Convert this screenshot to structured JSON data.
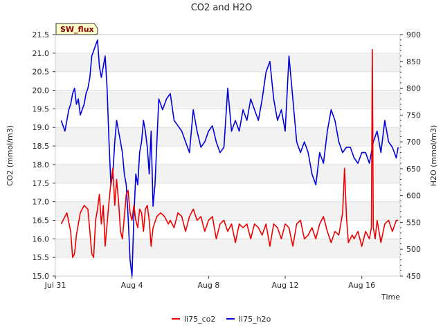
{
  "chart_data": {
    "type": "line",
    "title": "CO2 and H2O",
    "badge": "SW_flux",
    "xlabel": "Time",
    "ylabel_left": "CO2 (mmol/m3)",
    "ylabel_right": "H2O (mmol/m3)",
    "x_range_days": [
      0,
      18
    ],
    "x_ticks": [
      {
        "day": 0,
        "label": "Jul 31"
      },
      {
        "day": 4,
        "label": "Aug 4"
      },
      {
        "day": 8,
        "label": "Aug 8"
      },
      {
        "day": 12,
        "label": "Aug 12"
      },
      {
        "day": 16,
        "label": "Aug 16"
      }
    ],
    "ylim_left": [
      15.0,
      21.5
    ],
    "yticks_left": [
      "15.0",
      "15.5",
      "16.0",
      "16.5",
      "17.0",
      "17.5",
      "18.0",
      "18.5",
      "19.0",
      "19.5",
      "20.0",
      "20.5",
      "21.0",
      "21.5"
    ],
    "ylim_right": [
      450,
      900
    ],
    "yticks_right": [
      "450",
      "500",
      "550",
      "600",
      "650",
      "700",
      "750",
      "800",
      "850",
      "900"
    ],
    "series": [
      {
        "name": "li75_co2",
        "axis": "left",
        "color": "#ee0000",
        "x": [
          0.3,
          0.4,
          0.6,
          0.8,
          0.9,
          1.0,
          1.1,
          1.3,
          1.5,
          1.7,
          1.9,
          2.0,
          2.1,
          2.2,
          2.3,
          2.4,
          2.5,
          2.6,
          2.7,
          2.8,
          2.9,
          3.0,
          3.1,
          3.2,
          3.3,
          3.4,
          3.5,
          3.6,
          3.7,
          3.8,
          3.9,
          4.0,
          4.1,
          4.2,
          4.3,
          4.4,
          4.5,
          4.6,
          4.7,
          4.8,
          4.9,
          5.0,
          5.1,
          5.3,
          5.5,
          5.7,
          5.9,
          6.0,
          6.2,
          6.4,
          6.6,
          6.8,
          7.0,
          7.2,
          7.4,
          7.6,
          7.8,
          8.0,
          8.2,
          8.4,
          8.6,
          8.8,
          9.0,
          9.2,
          9.4,
          9.6,
          9.8,
          10.0,
          10.2,
          10.4,
          10.6,
          10.8,
          11.0,
          11.2,
          11.4,
          11.6,
          11.8,
          12.0,
          12.2,
          12.4,
          12.6,
          12.8,
          13.0,
          13.2,
          13.4,
          13.6,
          13.8,
          14.0,
          14.2,
          14.4,
          14.6,
          14.8,
          15.0,
          15.1,
          15.2,
          15.3,
          15.4,
          15.5,
          15.6,
          15.8,
          16.0,
          16.2,
          16.4,
          16.5,
          16.55,
          16.6,
          16.7,
          16.8,
          17.0,
          17.2,
          17.4,
          17.6,
          17.8,
          17.9
        ],
        "values": [
          16.4,
          16.5,
          16.7,
          16.2,
          15.5,
          15.6,
          16.1,
          16.7,
          16.9,
          16.8,
          15.6,
          15.5,
          16.5,
          16.8,
          17.2,
          16.4,
          16.9,
          15.8,
          16.4,
          17.0,
          17.5,
          17.9,
          16.9,
          17.6,
          17.0,
          16.2,
          16.0,
          16.6,
          17.2,
          17.3,
          16.7,
          16.5,
          16.9,
          16.5,
          16.3,
          16.8,
          16.7,
          16.2,
          16.8,
          16.9,
          16.5,
          15.8,
          16.3,
          16.6,
          16.7,
          16.6,
          16.4,
          16.5,
          16.3,
          16.7,
          16.6,
          16.2,
          16.6,
          16.8,
          16.5,
          16.6,
          16.2,
          16.5,
          16.6,
          16.0,
          16.4,
          16.5,
          16.2,
          16.4,
          15.9,
          16.4,
          16.3,
          16.4,
          16.0,
          16.4,
          16.3,
          16.1,
          16.4,
          15.8,
          16.4,
          16.3,
          16.0,
          16.4,
          16.3,
          15.8,
          16.4,
          16.5,
          16.0,
          16.1,
          16.3,
          16.0,
          16.4,
          16.6,
          16.2,
          15.9,
          16.2,
          16.1,
          16.7,
          17.9,
          16.6,
          15.9,
          16.0,
          16.1,
          16.0,
          16.2,
          15.8,
          16.2,
          16.0,
          16.3,
          21.1,
          16.3,
          16.0,
          16.5,
          15.9,
          16.4,
          16.5,
          16.2,
          16.5,
          16.5
        ]
      },
      {
        "name": "li75_h2o",
        "axis": "right",
        "color": "#0000dd",
        "x": [
          0.3,
          0.4,
          0.5,
          0.6,
          0.7,
          0.8,
          0.9,
          1.0,
          1.1,
          1.2,
          1.3,
          1.4,
          1.5,
          1.6,
          1.7,
          1.8,
          1.9,
          2.0,
          2.1,
          2.2,
          2.3,
          2.4,
          2.5,
          2.6,
          2.7,
          2.8,
          2.9,
          3.0,
          3.1,
          3.2,
          3.3,
          3.4,
          3.5,
          3.6,
          3.7,
          3.8,
          3.9,
          4.0,
          4.1,
          4.2,
          4.3,
          4.4,
          4.5,
          4.6,
          4.7,
          4.8,
          4.9,
          5.0,
          5.1,
          5.2,
          5.4,
          5.6,
          5.8,
          6.0,
          6.2,
          6.4,
          6.6,
          6.8,
          7.0,
          7.2,
          7.4,
          7.6,
          7.8,
          8.0,
          8.2,
          8.4,
          8.6,
          8.8,
          9.0,
          9.2,
          9.4,
          9.6,
          9.8,
          10.0,
          10.2,
          10.4,
          10.6,
          10.8,
          11.0,
          11.2,
          11.4,
          11.6,
          11.8,
          12.0,
          12.2,
          12.4,
          12.6,
          12.8,
          13.0,
          13.2,
          13.4,
          13.6,
          13.8,
          14.0,
          14.2,
          14.4,
          14.6,
          14.8,
          15.0,
          15.2,
          15.4,
          15.6,
          15.8,
          16.0,
          16.2,
          16.4,
          16.6,
          16.8,
          17.0,
          17.2,
          17.4,
          17.6,
          17.8,
          17.9
        ],
        "values": [
          740,
          730,
          720,
          740,
          760,
          770,
          790,
          800,
          770,
          780,
          750,
          760,
          770,
          790,
          800,
          820,
          860,
          870,
          880,
          890,
          840,
          820,
          840,
          860,
          800,
          700,
          620,
          640,
          700,
          740,
          720,
          700,
          680,
          640,
          620,
          560,
          480,
          450,
          560,
          640,
          620,
          680,
          700,
          740,
          720,
          690,
          640,
          720,
          580,
          620,
          780,
          760,
          780,
          790,
          740,
          730,
          720,
          700,
          680,
          760,
          720,
          690,
          700,
          720,
          730,
          700,
          680,
          690,
          800,
          720,
          740,
          720,
          760,
          740,
          780,
          760,
          740,
          780,
          830,
          850,
          780,
          740,
          760,
          720,
          860,
          780,
          700,
          680,
          700,
          680,
          640,
          620,
          680,
          660,
          720,
          760,
          740,
          700,
          680,
          690,
          690,
          670,
          660,
          680,
          680,
          660,
          700,
          720,
          680,
          740,
          700,
          690,
          670,
          690
        ]
      }
    ]
  }
}
